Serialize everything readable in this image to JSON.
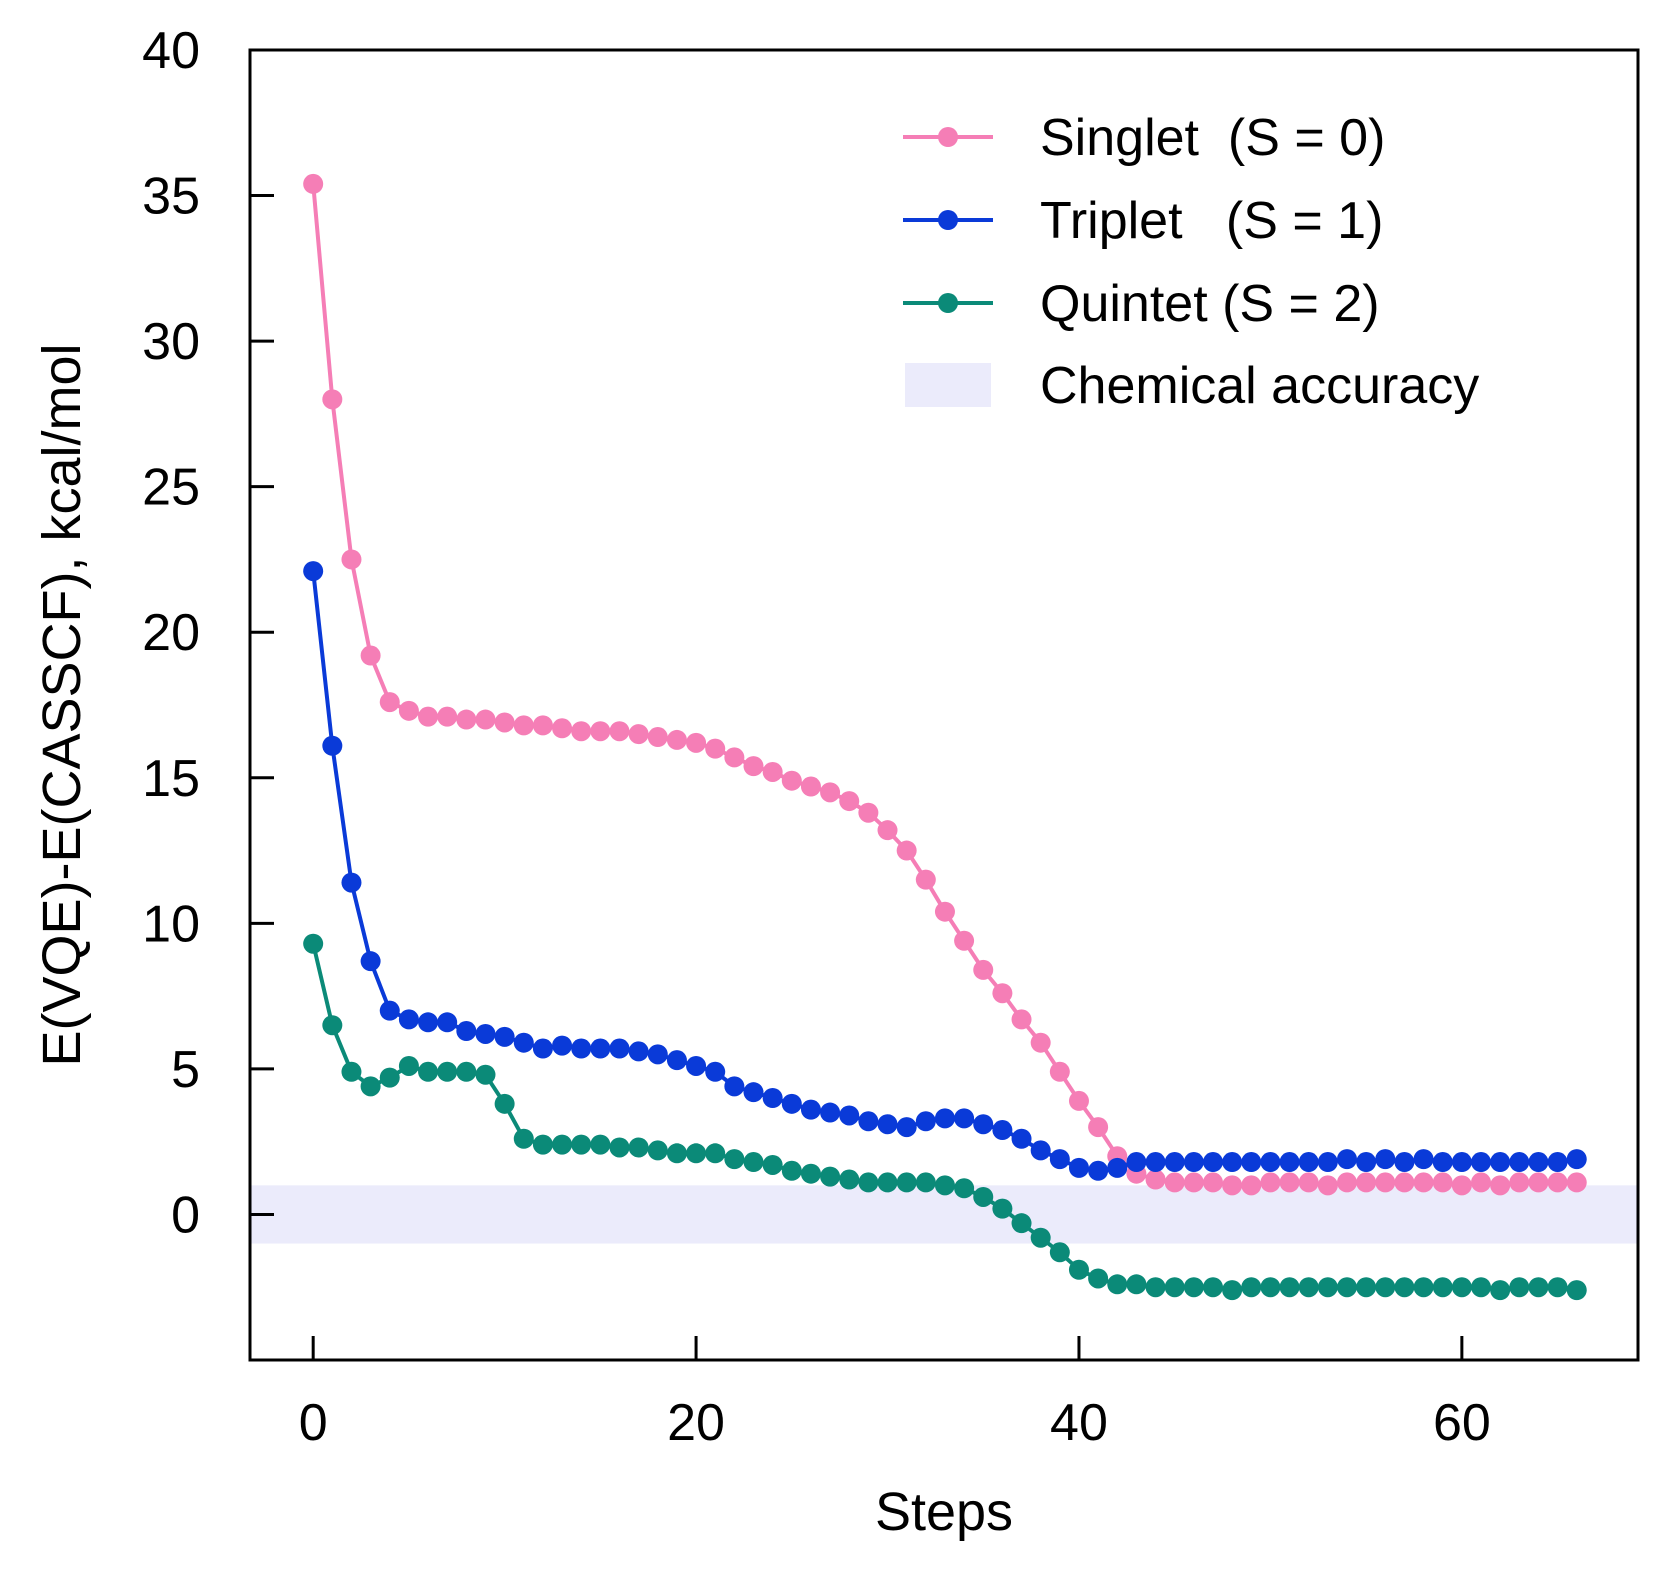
{
  "chart_data": {
    "type": "line",
    "title": "",
    "xlabel": "Steps",
    "ylabel": "E(VQE)-E(CASSCF), kcal/mol",
    "xlim": [
      -3.3,
      69.2
    ],
    "ylim": [
      -5,
      40
    ],
    "xticks": [
      0,
      20,
      40,
      60
    ],
    "yticks": [
      0,
      5,
      10,
      15,
      20,
      25,
      30,
      35,
      40
    ],
    "xtick_labels": [
      "0",
      "20",
      "40",
      "60"
    ],
    "ytick_labels": [
      "0",
      "5",
      "10",
      "15",
      "20",
      "25",
      "30",
      "35",
      "40"
    ],
    "grid": false,
    "legend_position": "top-right",
    "band": {
      "name": "Chemical accuracy",
      "y_range": [
        -1,
        1
      ],
      "color": "#ebebfb"
    },
    "series": [
      {
        "name": "Singlet  (S = 0)",
        "color": "#f57eb6",
        "values": [
          35.4,
          28.0,
          22.5,
          19.2,
          17.6,
          17.3,
          17.1,
          17.1,
          17.0,
          17.0,
          16.9,
          16.8,
          16.8,
          16.7,
          16.6,
          16.6,
          16.6,
          16.5,
          16.4,
          16.3,
          16.2,
          16.0,
          15.7,
          15.4,
          15.2,
          14.9,
          14.7,
          14.5,
          14.2,
          13.8,
          13.2,
          12.5,
          11.5,
          10.4,
          9.4,
          8.4,
          7.6,
          6.7,
          5.9,
          4.9,
          3.9,
          3.0,
          2.0,
          1.4,
          1.2,
          1.1,
          1.1,
          1.1,
          1.0,
          1.0,
          1.1,
          1.1,
          1.1,
          1.0,
          1.1,
          1.1,
          1.1,
          1.1,
          1.1,
          1.1,
          1.0,
          1.1,
          1.0,
          1.1,
          1.1,
          1.1,
          1.1
        ]
      },
      {
        "name": "Triplet   (S = 1)",
        "color": "#0a3ad8",
        "values": [
          22.1,
          16.1,
          11.4,
          8.7,
          7.0,
          6.7,
          6.6,
          6.6,
          6.3,
          6.2,
          6.1,
          5.9,
          5.7,
          5.8,
          5.7,
          5.7,
          5.7,
          5.6,
          5.5,
          5.3,
          5.1,
          4.9,
          4.4,
          4.2,
          4.0,
          3.8,
          3.6,
          3.5,
          3.4,
          3.2,
          3.1,
          3.0,
          3.2,
          3.3,
          3.3,
          3.1,
          2.9,
          2.6,
          2.2,
          1.9,
          1.6,
          1.5,
          1.6,
          1.8,
          1.8,
          1.8,
          1.8,
          1.8,
          1.8,
          1.8,
          1.8,
          1.8,
          1.8,
          1.8,
          1.9,
          1.8,
          1.9,
          1.8,
          1.9,
          1.8,
          1.8,
          1.8,
          1.8,
          1.8,
          1.8,
          1.8,
          1.9
        ]
      },
      {
        "name": "Quintet (S = 2)",
        "color": "#0b8a78",
        "values": [
          9.3,
          6.5,
          4.9,
          4.4,
          4.7,
          5.1,
          4.9,
          4.9,
          4.9,
          4.8,
          3.8,
          2.6,
          2.4,
          2.4,
          2.4,
          2.4,
          2.3,
          2.3,
          2.2,
          2.1,
          2.1,
          2.1,
          1.9,
          1.8,
          1.7,
          1.5,
          1.4,
          1.3,
          1.2,
          1.1,
          1.1,
          1.1,
          1.1,
          1.0,
          0.9,
          0.6,
          0.2,
          -0.3,
          -0.8,
          -1.3,
          -1.9,
          -2.2,
          -2.4,
          -2.4,
          -2.5,
          -2.5,
          -2.5,
          -2.5,
          -2.6,
          -2.5,
          -2.5,
          -2.5,
          -2.5,
          -2.5,
          -2.5,
          -2.5,
          -2.5,
          -2.5,
          -2.5,
          -2.5,
          -2.5,
          -2.5,
          -2.6,
          -2.5,
          -2.5,
          -2.5,
          -2.6
        ]
      }
    ]
  }
}
